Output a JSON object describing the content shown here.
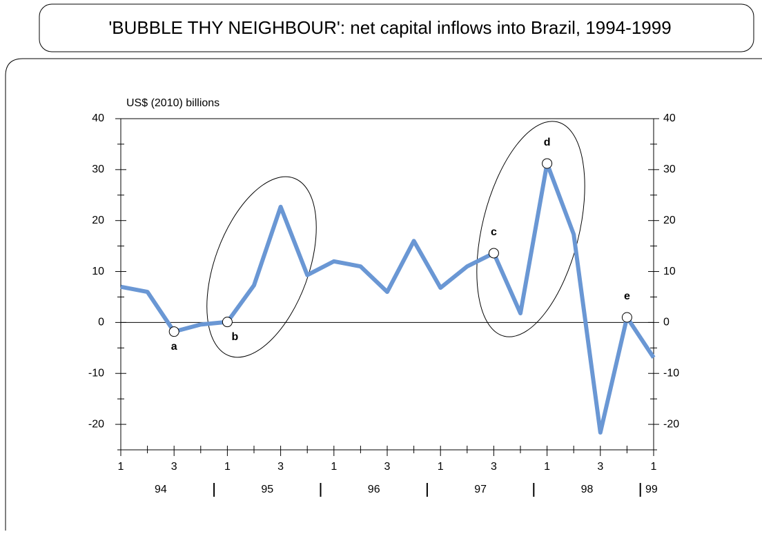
{
  "chart_data": {
    "type": "line",
    "title": "'BUBBLE THY NEIGHBOUR': net capital inflows into Brazil, 1994-1999",
    "y_label": "US$  (2010)  billions",
    "categories": [
      "1",
      null,
      "3",
      null,
      "1",
      null,
      "3",
      null,
      "1",
      null,
      "3",
      null,
      "1",
      null,
      "3",
      null,
      "1",
      null,
      "3",
      null,
      "1"
    ],
    "year_labels": [
      "94",
      "95",
      "96",
      "97",
      "98",
      "99"
    ],
    "series": [
      {
        "name": "net capital inflows",
        "color": "#6a97d4",
        "values": [
          7,
          6,
          -1.8,
          -0.4,
          0.1,
          7.3,
          22.7,
          9.3,
          12,
          11,
          6,
          16,
          6.8,
          11,
          13.6,
          1.8,
          31.2,
          17.3,
          -21.6,
          1,
          -6.9
        ],
        "marker_labels": [
          null,
          null,
          "a",
          null,
          "b",
          null,
          null,
          null,
          null,
          null,
          null,
          null,
          null,
          null,
          "c",
          null,
          "d",
          null,
          null,
          "e",
          null
        ]
      }
    ],
    "ylim": [
      -25,
      40
    ],
    "yticks": [
      -20,
      -10,
      0,
      10,
      20,
      30,
      40
    ],
    "minor_yticks": [
      -25,
      -15,
      -5,
      5,
      15,
      25,
      35
    ],
    "y2lim": [
      -25,
      40
    ],
    "y2ticks": [
      -20,
      -10,
      0,
      10,
      20,
      30,
      40
    ],
    "zero_line": true
  }
}
